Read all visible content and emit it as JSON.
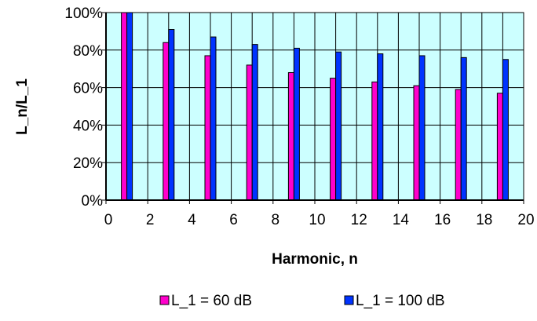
{
  "chart_data": {
    "type": "bar",
    "title": "",
    "xlabel": "Harmonic, n",
    "ylabel": "L_n/L_1",
    "x_ticks": [
      "0",
      "2",
      "4",
      "6",
      "8",
      "10",
      "12",
      "14",
      "16",
      "18",
      "20"
    ],
    "y_ticks": [
      "0%",
      "20%",
      "40%",
      "60%",
      "80%",
      "100%"
    ],
    "xlim": [
      0,
      20
    ],
    "ylim": [
      0,
      100
    ],
    "x": [
      1,
      3,
      5,
      7,
      9,
      11,
      13,
      15,
      17,
      19
    ],
    "series": [
      {
        "name": "L_1 = 60 dB",
        "color": "#ff00cc",
        "values": [
          100,
          84,
          77,
          72,
          68,
          65,
          63,
          61,
          59,
          57
        ]
      },
      {
        "name": "L_1 = 100 dB",
        "color": "#0033ff",
        "values": [
          100,
          91,
          87,
          83,
          81,
          79,
          78,
          77,
          76,
          75
        ]
      }
    ],
    "grid": true,
    "legend_position": "bottom",
    "plot_background": "#ccffff"
  }
}
